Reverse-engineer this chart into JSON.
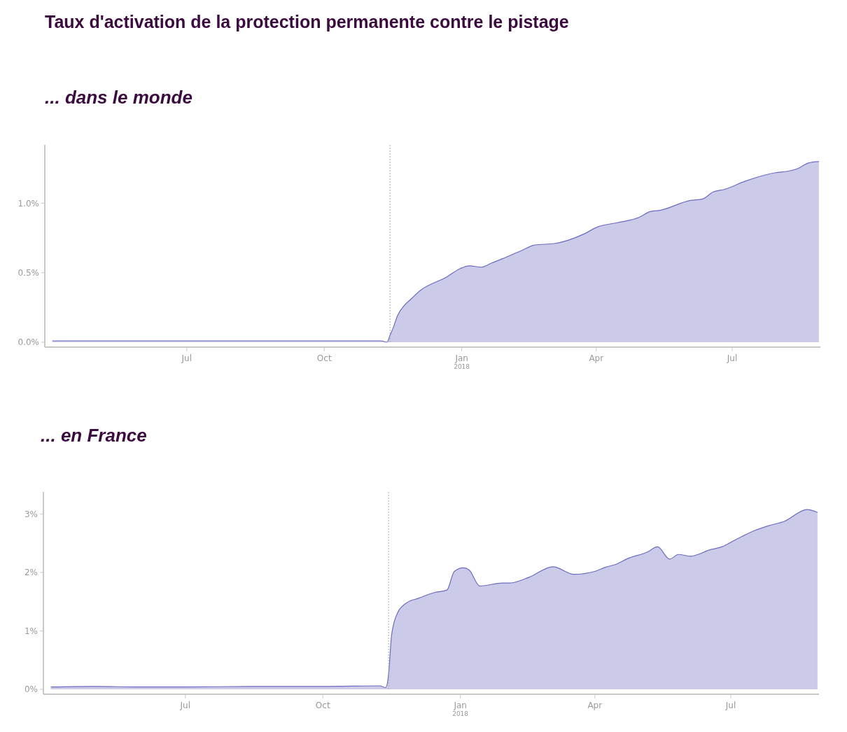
{
  "chart_data": [
    {
      "type": "area",
      "title": "Taux d'activation de la protection permanente contre le pistage",
      "subtitle": "... dans le monde",
      "x": [
        "2017-04-02",
        "2017-05-15",
        "2017-07-01",
        "2017-08-15",
        "2017-10-01",
        "2017-11-08",
        "2017-11-12",
        "2017-11-14",
        "2017-11-16",
        "2017-11-19",
        "2017-11-24",
        "2017-11-28",
        "2017-12-04",
        "2017-12-22",
        "2017-12-31",
        "2018-01-06",
        "2018-01-14",
        "2018-01-21",
        "2018-01-28",
        "2018-02-10",
        "2018-02-19",
        "2018-03-04",
        "2018-03-24",
        "2018-04-02",
        "2018-04-15",
        "2018-04-30",
        "2018-05-07",
        "2018-05-14",
        "2018-06-03",
        "2018-06-11",
        "2018-06-18",
        "2018-06-26",
        "2018-07-10",
        "2018-07-30",
        "2018-08-07",
        "2018-08-14",
        "2018-08-21",
        "2018-08-28"
      ],
      "series": [
        {
          "color": "#6b6bbf",
          "values": [
            0.01,
            0.01,
            0.01,
            0.01,
            0.01,
            0.01,
            0.0,
            0.05,
            0.1,
            0.19,
            0.27,
            0.31,
            0.37,
            0.47,
            0.53,
            0.55,
            0.54,
            0.57,
            0.6,
            0.66,
            0.7,
            0.71,
            0.78,
            0.83,
            0.86,
            0.9,
            0.94,
            0.95,
            1.02,
            1.03,
            1.08,
            1.1,
            1.16,
            1.22,
            1.23,
            1.25,
            1.29,
            1.3
          ]
        }
      ],
      "xlim": [
        "2017-03-28",
        "2018-08-29"
      ],
      "xticks": [
        {
          "value": "2017-07-01",
          "label": "Jul"
        },
        {
          "value": "2017-10-01",
          "label": "Oct"
        },
        {
          "value": "2018-01-01",
          "label": "Jan$_{2018}$"
        },
        {
          "value": "2018-04-01",
          "label": "Apr"
        },
        {
          "value": "2018-07-01",
          "label": "Jul"
        }
      ],
      "ylim": [
        0,
        1.42
      ],
      "yticks": [
        {
          "value": 0,
          "label": "0.0%"
        },
        {
          "value": 0.5,
          "label": "0.5%"
        },
        {
          "value": 1,
          "label": "1.0%"
        }
      ],
      "ref_lines": [
        {
          "axis": "x",
          "value": "2017-11-14",
          "color": "#aaaaaa",
          "line_style": "dotted"
        }
      ]
    },
    {
      "type": "area",
      "title": "... en France",
      "x": [
        "2017-04-02",
        "2017-05-01",
        "2017-06-01",
        "2017-07-01",
        "2017-08-15",
        "2017-09-05",
        "2017-10-01",
        "2017-11-08",
        "2017-11-12",
        "2017-11-14",
        "2017-11-16",
        "2017-11-20",
        "2017-11-26",
        "2017-12-04",
        "2017-12-15",
        "2017-12-23",
        "2017-12-28",
        "2018-01-03",
        "2018-01-07",
        "2018-01-14",
        "2018-01-29",
        "2018-02-03",
        "2018-02-16",
        "2018-03-04",
        "2018-03-18",
        "2018-04-01",
        "2018-04-08",
        "2018-04-15",
        "2018-04-23",
        "2018-05-06",
        "2018-05-13",
        "2018-05-21",
        "2018-05-27",
        "2018-06-04",
        "2018-06-17",
        "2018-06-25",
        "2018-07-04",
        "2018-07-17",
        "2018-07-26",
        "2018-08-06",
        "2018-08-21",
        "2018-08-28"
      ],
      "series": [
        {
          "color": "#6b6bbf",
          "values": [
            0.04,
            0.05,
            0.04,
            0.04,
            0.05,
            0.05,
            0.05,
            0.06,
            0.03,
            0.26,
            0.93,
            1.31,
            1.48,
            1.56,
            1.66,
            1.7,
            2.02,
            2.08,
            2.04,
            1.77,
            1.82,
            1.82,
            1.92,
            2.1,
            1.97,
            2.02,
            2.09,
            2.14,
            2.24,
            2.35,
            2.44,
            2.23,
            2.31,
            2.28,
            2.39,
            2.44,
            2.56,
            2.72,
            2.8,
            2.88,
            3.08,
            3.03
          ]
        }
      ],
      "xlim": [
        "2017-03-28",
        "2018-08-29"
      ],
      "xticks": [
        {
          "value": "2017-07-01",
          "label": "Jul"
        },
        {
          "value": "2017-10-01",
          "label": "Oct"
        },
        {
          "value": "2018-01-01",
          "label": "Jan$_{2018}$"
        },
        {
          "value": "2018-04-01",
          "label": "Apr"
        },
        {
          "value": "2018-07-01",
          "label": "Jul"
        }
      ],
      "ylim": [
        0,
        3.38
      ],
      "yticks": [
        {
          "value": 0,
          "label": "0%"
        },
        {
          "value": 1,
          "label": "1%"
        },
        {
          "value": 2,
          "label": "2%"
        },
        {
          "value": 3,
          "label": "3%"
        }
      ],
      "ref_lines": [
        {
          "axis": "x",
          "value": "2017-11-14",
          "color": "#aaaaaa",
          "line_style": "dotted"
        }
      ]
    }
  ]
}
